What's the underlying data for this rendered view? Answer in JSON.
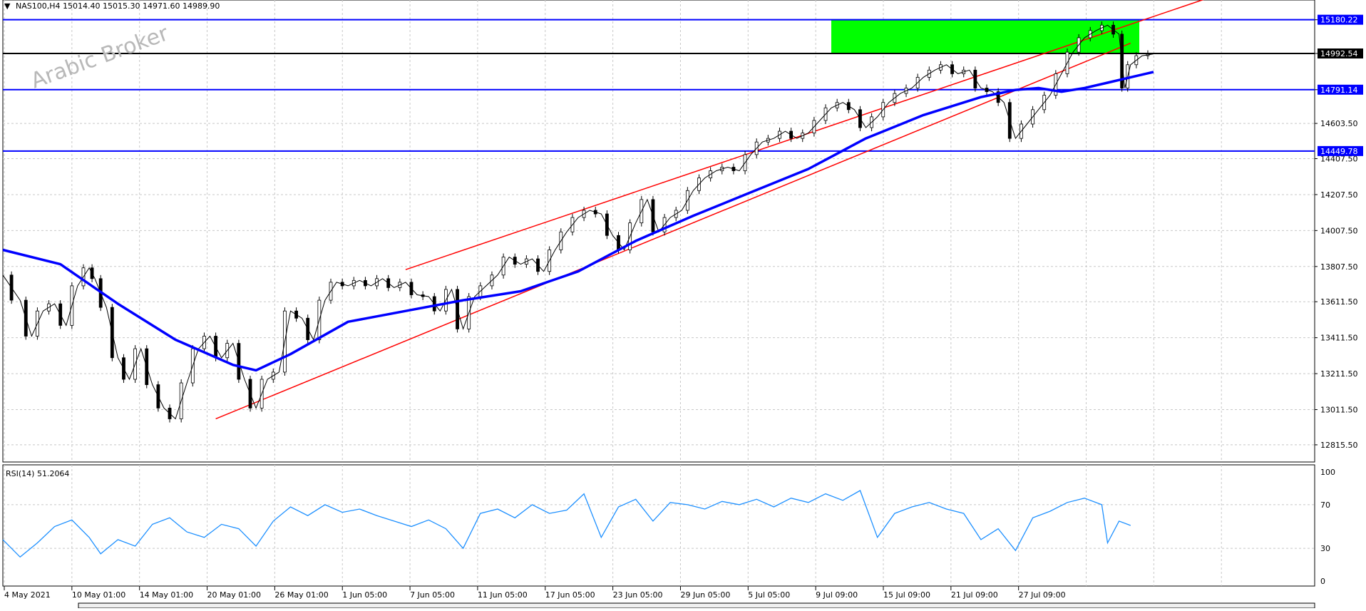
{
  "header": {
    "symbol_line": "NAS100,H4  15014.40 15015.30 14971.60 14989.90",
    "rsi_line": "RSI(14) 51.2064"
  },
  "watermark": "Arabic Broker",
  "colors": {
    "blue": "#0000ff",
    "red": "#ff0000",
    "green": "#00ff00",
    "black": "#000000",
    "rsi": "#1e90ff",
    "grid": "#c8c8c8"
  },
  "chart_data": [
    {
      "type": "line",
      "title": "",
      "symbol": "NAS100,H4",
      "ohlc_label": "15014.40 15015.30 14971.60 14989.90",
      "ylim": [
        12720,
        15290
      ],
      "price_ticks": [
        "15180.22",
        "14992.54",
        "14791.14",
        "14603.50",
        "14407.50",
        "14207.50",
        "14007.50",
        "13807.50",
        "13611.50",
        "13411.50",
        "13211.50",
        "13011.50",
        "12815.50"
      ],
      "price_tick_values": [
        15180.22,
        14992.54,
        14791.14,
        14603.5,
        14407.5,
        14207.5,
        14007.5,
        13807.5,
        13611.5,
        13411.5,
        13211.5,
        13011.5,
        12815.5
      ],
      "x_ticks": [
        "4 May 2021",
        "10 May 01:00",
        "14 May 01:00",
        "20 May 01:00",
        "26 May 01:00",
        "1 Jun 05:00",
        "7 Jun 05:00",
        "11 Jun 05:00",
        "17 Jun 05:00",
        "23 Jun 05:00",
        "29 Jun 05:00",
        "5 Jul 05:00",
        "9 Jul 09:00",
        "15 Jul 09:00",
        "21 Jul 09:00",
        "27 Jul 09:00"
      ],
      "horizontal_levels": [
        {
          "value": 15180.22,
          "label": "15180.22",
          "color": "#0000ff"
        },
        {
          "value": 14992.54,
          "label": "14992.54",
          "color": "#000000"
        },
        {
          "value": 14791.14,
          "label": "14791.14",
          "color": "#0000ff"
        },
        {
          "value": 14449.78,
          "label": "14449.78",
          "color": "#0000ff"
        }
      ],
      "resistance_zone": {
        "from": 14992.54,
        "to": 15180.22,
        "color": "#00ff00"
      },
      "price_path": [
        [
          0,
          13760
        ],
        [
          3,
          13620
        ],
        [
          5,
          13420
        ],
        [
          7,
          13560
        ],
        [
          9,
          13600
        ],
        [
          11,
          13480
        ],
        [
          13,
          13700
        ],
        [
          15,
          13800
        ],
        [
          16,
          13740
        ],
        [
          18,
          13580
        ],
        [
          20,
          13300
        ],
        [
          22,
          13180
        ],
        [
          24,
          13350
        ],
        [
          26,
          13150
        ],
        [
          28,
          13020
        ],
        [
          30,
          12960
        ],
        [
          32,
          13160
        ],
        [
          34,
          13350
        ],
        [
          36,
          13420
        ],
        [
          38,
          13300
        ],
        [
          40,
          13380
        ],
        [
          42,
          13180
        ],
        [
          44,
          13020
        ],
        [
          46,
          13180
        ],
        [
          48,
          13220
        ],
        [
          50,
          13560
        ],
        [
          52,
          13520
        ],
        [
          54,
          13400
        ],
        [
          56,
          13620
        ],
        [
          58,
          13720
        ],
        [
          60,
          13700
        ],
        [
          62,
          13730
        ],
        [
          64,
          13700
        ],
        [
          66,
          13740
        ],
        [
          68,
          13690
        ],
        [
          70,
          13720
        ],
        [
          72,
          13650
        ],
        [
          74,
          13640
        ],
        [
          76,
          13560
        ],
        [
          78,
          13680
        ],
        [
          80,
          13460
        ],
        [
          82,
          13640
        ],
        [
          84,
          13700
        ],
        [
          86,
          13760
        ],
        [
          88,
          13860
        ],
        [
          90,
          13820
        ],
        [
          92,
          13850
        ],
        [
          94,
          13780
        ],
        [
          96,
          13900
        ],
        [
          98,
          14000
        ],
        [
          100,
          14080
        ],
        [
          102,
          14120
        ],
        [
          104,
          14100
        ],
        [
          106,
          13980
        ],
        [
          108,
          13900
        ],
        [
          110,
          14050
        ],
        [
          112,
          14180
        ],
        [
          114,
          14000
        ],
        [
          116,
          14080
        ],
        [
          118,
          14120
        ],
        [
          120,
          14230
        ],
        [
          122,
          14300
        ],
        [
          124,
          14340
        ],
        [
          126,
          14360
        ],
        [
          128,
          14340
        ],
        [
          130,
          14430
        ],
        [
          132,
          14500
        ],
        [
          134,
          14520
        ],
        [
          136,
          14560
        ],
        [
          138,
          14520
        ],
        [
          140,
          14550
        ],
        [
          142,
          14620
        ],
        [
          144,
          14690
        ],
        [
          146,
          14720
        ],
        [
          148,
          14680
        ],
        [
          150,
          14580
        ],
        [
          152,
          14640
        ],
        [
          154,
          14720
        ],
        [
          156,
          14770
        ],
        [
          158,
          14800
        ],
        [
          160,
          14860
        ],
        [
          162,
          14900
        ],
        [
          164,
          14930
        ],
        [
          166,
          14880
        ],
        [
          168,
          14900
        ],
        [
          170,
          14800
        ],
        [
          172,
          14780
        ],
        [
          174,
          14720
        ],
        [
          176,
          14520
        ],
        [
          178,
          14600
        ],
        [
          180,
          14680
        ],
        [
          182,
          14760
        ],
        [
          184,
          14880
        ],
        [
          186,
          15000
        ],
        [
          188,
          15080
        ],
        [
          190,
          15120
        ],
        [
          192,
          15150
        ],
        [
          194,
          15100
        ],
        [
          195,
          14800
        ],
        [
          196,
          14930
        ],
        [
          198,
          14980
        ],
        [
          200,
          14990
        ]
      ],
      "moving_average": [
        [
          0,
          13900
        ],
        [
          10,
          13820
        ],
        [
          20,
          13600
        ],
        [
          30,
          13400
        ],
        [
          40,
          13260
        ],
        [
          44,
          13230
        ],
        [
          50,
          13320
        ],
        [
          60,
          13500
        ],
        [
          70,
          13560
        ],
        [
          80,
          13620
        ],
        [
          90,
          13670
        ],
        [
          100,
          13780
        ],
        [
          110,
          13950
        ],
        [
          120,
          14090
        ],
        [
          130,
          14220
        ],
        [
          140,
          14350
        ],
        [
          150,
          14520
        ],
        [
          160,
          14650
        ],
        [
          170,
          14750
        ],
        [
          176,
          14790
        ],
        [
          180,
          14800
        ],
        [
          184,
          14780
        ],
        [
          188,
          14800
        ],
        [
          192,
          14830
        ],
        [
          196,
          14860
        ],
        [
          200,
          14890
        ]
      ],
      "channel": {
        "lower": [
          [
            37,
            12960
          ],
          [
            196,
            15050
          ]
        ],
        "upper": [
          [
            70,
            13790
          ],
          [
            214,
            15350
          ]
        ],
        "color": "#ff0000"
      }
    },
    {
      "type": "line",
      "title": "",
      "indicator": "RSI(14)",
      "value": 51.2064,
      "ylim": [
        0,
        100
      ],
      "levels": [
        30,
        70
      ],
      "tick_labels": [
        "100",
        "70",
        "30",
        "0"
      ],
      "tick_values": [
        100,
        70,
        30,
        0
      ],
      "values": [
        [
          0,
          38
        ],
        [
          3,
          22
        ],
        [
          6,
          35
        ],
        [
          9,
          50
        ],
        [
          12,
          56
        ],
        [
          15,
          40
        ],
        [
          17,
          25
        ],
        [
          20,
          38
        ],
        [
          23,
          32
        ],
        [
          26,
          52
        ],
        [
          29,
          58
        ],
        [
          32,
          45
        ],
        [
          35,
          40
        ],
        [
          38,
          52
        ],
        [
          41,
          48
        ],
        [
          44,
          32
        ],
        [
          47,
          55
        ],
        [
          50,
          68
        ],
        [
          53,
          60
        ],
        [
          56,
          70
        ],
        [
          59,
          63
        ],
        [
          62,
          66
        ],
        [
          65,
          60
        ],
        [
          68,
          55
        ],
        [
          71,
          50
        ],
        [
          74,
          56
        ],
        [
          77,
          48
        ],
        [
          80,
          30
        ],
        [
          83,
          62
        ],
        [
          86,
          66
        ],
        [
          89,
          58
        ],
        [
          92,
          70
        ],
        [
          95,
          62
        ],
        [
          98,
          65
        ],
        [
          101,
          80
        ],
        [
          104,
          40
        ],
        [
          107,
          68
        ],
        [
          110,
          75
        ],
        [
          113,
          55
        ],
        [
          116,
          72
        ],
        [
          119,
          70
        ],
        [
          122,
          66
        ],
        [
          125,
          73
        ],
        [
          128,
          70
        ],
        [
          131,
          75
        ],
        [
          134,
          68
        ],
        [
          137,
          76
        ],
        [
          140,
          72
        ],
        [
          143,
          80
        ],
        [
          146,
          74
        ],
        [
          149,
          83
        ],
        [
          152,
          40
        ],
        [
          155,
          62
        ],
        [
          158,
          68
        ],
        [
          161,
          72
        ],
        [
          164,
          66
        ],
        [
          167,
          62
        ],
        [
          170,
          38
        ],
        [
          173,
          48
        ],
        [
          176,
          28
        ],
        [
          179,
          58
        ],
        [
          182,
          64
        ],
        [
          185,
          72
        ],
        [
          188,
          76
        ],
        [
          191,
          70
        ],
        [
          192,
          35
        ],
        [
          194,
          55
        ],
        [
          196,
          51
        ]
      ]
    }
  ]
}
